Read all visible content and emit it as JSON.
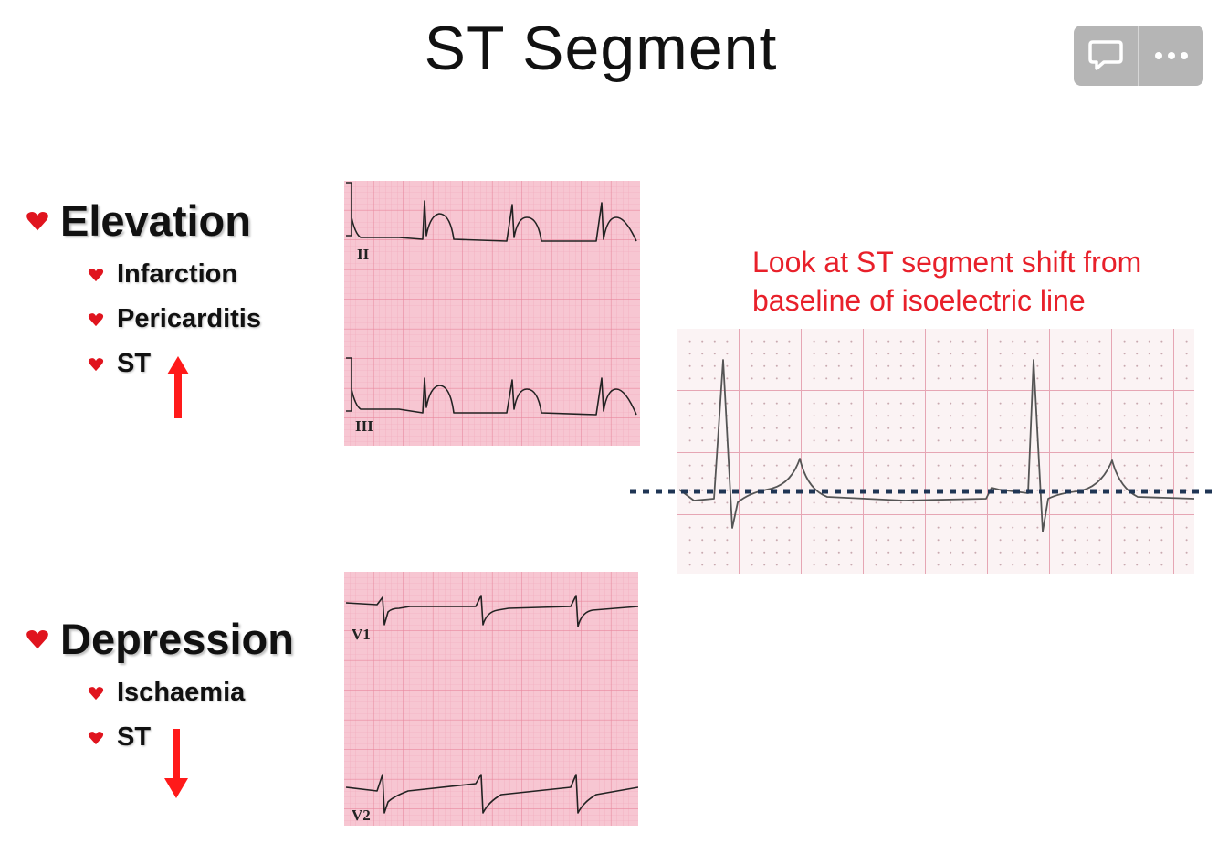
{
  "slide": {
    "title": "ST Segment",
    "note": "Look at ST segment shift from baseline of isoelectric line"
  },
  "toolbar": {
    "comment_icon": "speech-bubble-icon",
    "more_icon": "ellipsis-icon"
  },
  "elevation": {
    "heading": "Elevation",
    "items": [
      "Infarction",
      "Pericarditis",
      "ST"
    ],
    "arrow": "up",
    "leads": [
      "II",
      "III"
    ]
  },
  "depression": {
    "heading": "Depression",
    "items": [
      "Ischaemia",
      "ST"
    ],
    "arrow": "down",
    "leads": [
      "V1",
      "V2"
    ]
  },
  "colors": {
    "bullet": "#e0141e",
    "arrow": "#ff1a1a",
    "note": "#e8202a",
    "grid_bg": "#f7c6d2",
    "grid_line": "#e8899f",
    "isoelectric": "#1f3554"
  }
}
